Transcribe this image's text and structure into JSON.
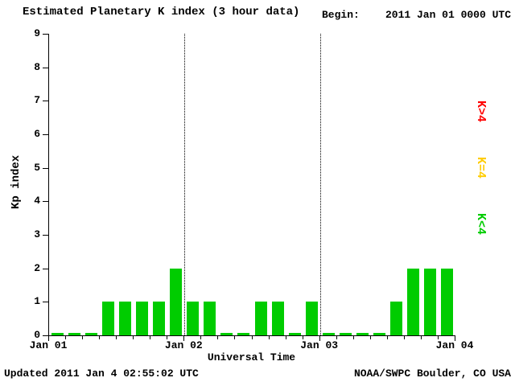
{
  "header": {
    "title": "Estimated Planetary K index (3 hour data)",
    "begin_label": "Begin:",
    "begin_value": "2011 Jan 01 0000 UTC"
  },
  "chart_data": {
    "type": "bar",
    "title": "Estimated Planetary K index (3 hour data)",
    "ylabel": "Kp index",
    "xlabel": "Universal Time",
    "ylim": [
      0,
      9
    ],
    "y_ticks": [
      0,
      1,
      2,
      3,
      4,
      5,
      6,
      7,
      8,
      9
    ],
    "x_tick_labels": [
      "Jan 01",
      "Jan 02",
      "Jan 03",
      "Jan 04"
    ],
    "hours_per_bar": 3,
    "values": [
      0,
      0,
      0,
      1,
      1,
      1,
      1,
      2,
      1,
      1,
      0,
      0,
      1,
      1,
      0,
      1,
      0,
      0,
      0,
      0,
      1,
      2,
      2,
      2
    ],
    "bar_color": "#00cc00",
    "grid": "vertical dotted lines at day boundaries",
    "legend_position": "right",
    "legend": [
      {
        "label": "K>4",
        "color": "#ff0000"
      },
      {
        "label": "K=4",
        "color": "#ffcc00"
      },
      {
        "label": "K<4",
        "color": "#00cc00"
      }
    ]
  },
  "footer": {
    "updated": "Updated 2011 Jan 4 02:55:02 UTC",
    "source": "NOAA/SWPC Boulder, CO USA"
  }
}
